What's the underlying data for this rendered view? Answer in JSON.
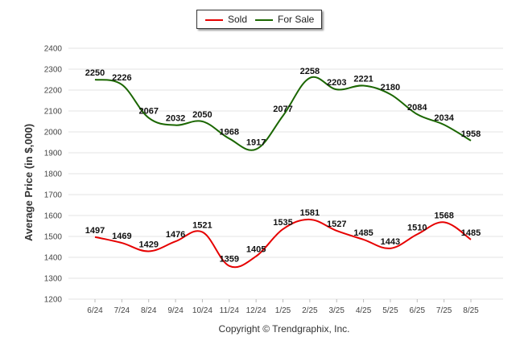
{
  "legend": {
    "sold_label": "Sold",
    "for_sale_label": "For Sale",
    "sold_color": "#e60000",
    "for_sale_color": "#1a6600"
  },
  "footer": {
    "copyright": "Copyright © Trendgraphix, Inc."
  },
  "chart_data": {
    "type": "line",
    "title": "",
    "xlabel": "",
    "ylabel": "Average Price (in $,000)",
    "ylim": [
      1200,
      2400
    ],
    "yticks": [
      1200,
      1300,
      1400,
      1500,
      1600,
      1700,
      1800,
      1900,
      2000,
      2100,
      2200,
      2300,
      2400
    ],
    "grid": true,
    "legend_position": "top-center",
    "categories": [
      "6/24",
      "7/24",
      "8/24",
      "9/24",
      "10/24",
      "11/24",
      "12/24",
      "1/25",
      "2/25",
      "3/25",
      "4/25",
      "5/25",
      "6/25",
      "7/25",
      "8/25"
    ],
    "series": [
      {
        "name": "Sold",
        "color": "#e60000",
        "values": [
          1497,
          1469,
          1429,
          1476,
          1521,
          1359,
          1405,
          1535,
          1581,
          1527,
          1485,
          1443,
          1510,
          1568,
          1485
        ]
      },
      {
        "name": "For Sale",
        "color": "#1a6600",
        "values": [
          2250,
          2226,
          2067,
          2032,
          2050,
          1968,
          1917,
          2077,
          2258,
          2203,
          2221,
          2180,
          2084,
          2034,
          1958
        ]
      }
    ]
  }
}
